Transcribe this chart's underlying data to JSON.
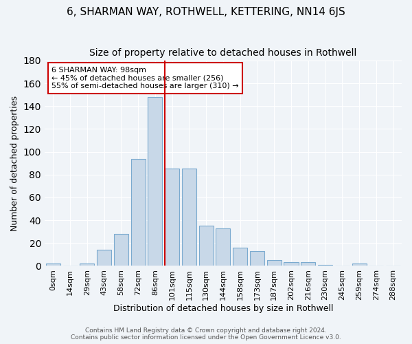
{
  "title1": "6, SHARMAN WAY, ROTHWELL, KETTERING, NN14 6JS",
  "title2": "Size of property relative to detached houses in Rothwell",
  "xlabel": "Distribution of detached houses by size in Rothwell",
  "ylabel": "Number of detached properties",
  "bar_labels": [
    "0sqm",
    "14sqm",
    "29sqm",
    "43sqm",
    "58sqm",
    "72sqm",
    "86sqm",
    "101sqm",
    "115sqm",
    "130sqm",
    "144sqm",
    "158sqm",
    "173sqm",
    "187sqm",
    "202sqm",
    "216sqm",
    "230sqm",
    "245sqm",
    "259sqm",
    "274sqm",
    "288sqm"
  ],
  "bar_heights": [
    2,
    0,
    2,
    14,
    28,
    94,
    148,
    85,
    85,
    35,
    33,
    16,
    13,
    5,
    3,
    3,
    1,
    0,
    2,
    0
  ],
  "bar_color": "#c8d8e8",
  "bar_edgecolor": "#7aaacf",
  "vline_x_index": 7,
  "vline_color": "#cc0000",
  "annotation_line1": "6 SHARMAN WAY: 98sqm",
  "annotation_line2": "← 45% of detached houses are smaller (256)",
  "annotation_line3": "55% of semi-detached houses are larger (310) →",
  "annotation_box_color": "#cc0000",
  "ylim": [
    0,
    180
  ],
  "footnote1": "Contains HM Land Registry data © Crown copyright and database right 2024.",
  "footnote2": "Contains public sector information licensed under the Open Government Licence v3.0.",
  "background_color": "#f0f4f8",
  "grid_color": "#ffffff",
  "title1_fontsize": 11,
  "title2_fontsize": 10,
  "tick_fontsize": 8,
  "ylabel_fontsize": 9,
  "xlabel_fontsize": 9
}
